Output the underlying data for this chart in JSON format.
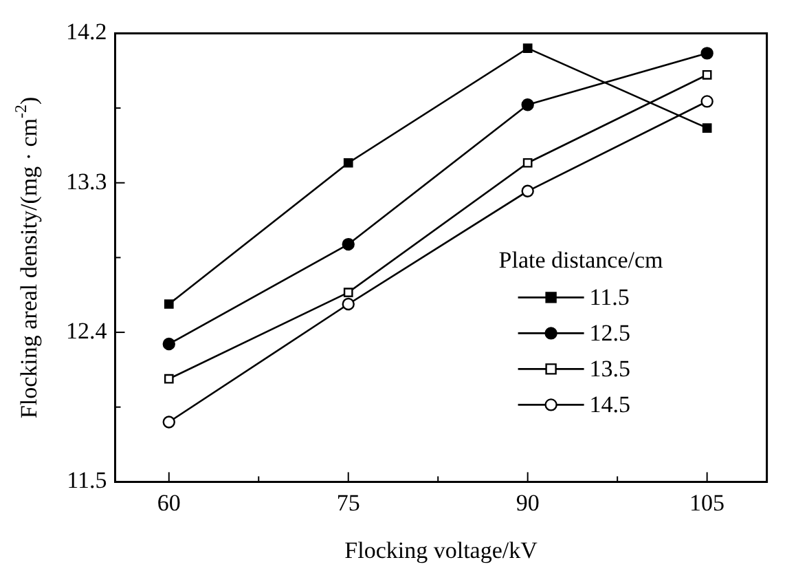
{
  "chart_data": {
    "type": "line",
    "xlabel": "Flocking voltage/kV",
    "ylabel": "Flocking areal density/(mg · cm$^{-2}$)",
    "legend_title": "Plate distance/cm",
    "legend": "bottom right",
    "grid": false,
    "line_style": "solid",
    "x": [
      60,
      75,
      90,
      105
    ],
    "xlim": [
      55.5,
      110
    ],
    "xticks": [
      60,
      {
        "value": 67.5,
        "label": null
      },
      75,
      {
        "value": 82.5,
        "label": null
      },
      90,
      {
        "value": 97.5,
        "label": null
      },
      105
    ],
    "ylim": [
      11.5,
      14.2
    ],
    "yticks": [
      11.5,
      {
        "value": 11.95,
        "label": null
      },
      12.4,
      {
        "value": 12.85,
        "label": null
      },
      13.3,
      {
        "value": 13.75,
        "label": null
      },
      14.2
    ],
    "series": [
      {
        "name": "11.5",
        "color": "#000000",
        "marker": "square",
        "values": [
          12.57,
          13.42,
          14.11,
          13.63
        ]
      },
      {
        "name": "12.5",
        "color": "#000000",
        "marker": "circle",
        "values": [
          12.33,
          12.93,
          13.77,
          14.08
        ]
      },
      {
        "name": "13.5",
        "color": "#000000",
        "marker": "square",
        "colors": [
          "#ffffff",
          "#ffffff",
          "#ffffff",
          "#ffffff"
        ],
        "values": [
          12.12,
          12.64,
          13.42,
          13.95
        ]
      },
      {
        "name": "14.5",
        "color": "#000000",
        "marker": "circle",
        "colors": [
          "#ffffff",
          "#ffffff",
          "#ffffff",
          "#ffffff"
        ],
        "values": [
          11.86,
          12.57,
          13.25,
          13.79
        ]
      }
    ]
  }
}
